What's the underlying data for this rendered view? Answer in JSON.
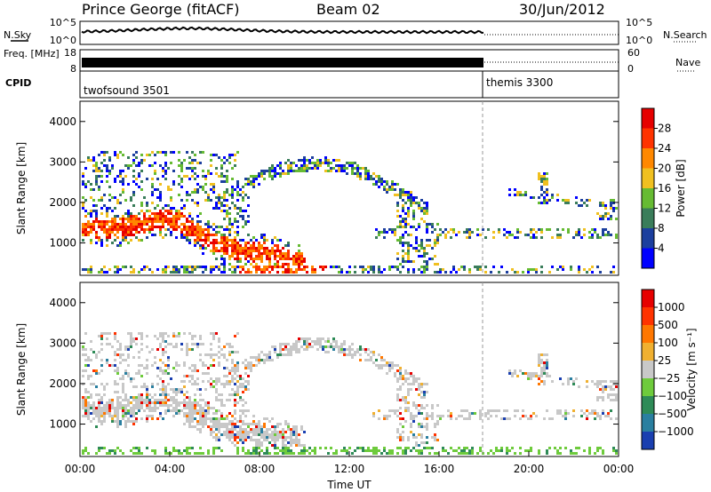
{
  "header": {
    "station": "Prince George (fitACF)",
    "beam": "Beam 02",
    "date": "30/Jun/2012"
  },
  "chart_data": [
    {
      "type": "line",
      "panel": "noise",
      "left_label": "N.Sky",
      "left_ticks": [
        "10^5",
        "10^0"
      ],
      "right_label": "N.Search",
      "right_ticks": [
        "10^5",
        "10^0"
      ]
    },
    {
      "type": "line",
      "panel": "frequency",
      "left_label": "Freq. [MHz]",
      "left_ticks": [
        "18",
        "8"
      ],
      "right_label": "Nave",
      "right_ticks": [
        "60",
        "0"
      ]
    },
    {
      "type": "table",
      "panel": "cpid",
      "label": "CPID",
      "segments": [
        {
          "name": "twofsound 3501",
          "start_hour": 0,
          "end_hour": 18
        },
        {
          "name": "themis 3300",
          "start_hour": 18,
          "end_hour": 24
        }
      ]
    },
    {
      "type": "heatmap",
      "panel": "power",
      "ylabel": "Slant Range [km]",
      "yticks": [
        1000,
        2000,
        3000,
        4000
      ],
      "ylim": [
        200,
        4500
      ],
      "colorbar_label": "Power [dB]",
      "colorbar_ticks": [
        "4",
        "8",
        "12",
        "16",
        "20",
        "24",
        "28"
      ],
      "colors": [
        "#0000ff",
        "#1c3f9e",
        "#3a7d5a",
        "#66bb33",
        "#f0c020",
        "#ff8800",
        "#ff3300",
        "#e60000"
      ]
    },
    {
      "type": "heatmap",
      "panel": "velocity",
      "ylabel": "Slant Range [km]",
      "yticks": [
        1000,
        2000,
        3000,
        4000
      ],
      "ylim": [
        200,
        4500
      ],
      "colorbar_label": "Velocity [m s⁻¹]",
      "colorbar_ticks": [
        "1000",
        "500",
        "100",
        "25",
        "−25",
        "−100",
        "−500",
        "−1000"
      ],
      "colors": [
        "#1a3fb0",
        "#2a7fa0",
        "#2e8b57",
        "#6ecb3c",
        "#c8c8c8",
        "#f0b030",
        "#ff7700",
        "#ff3300",
        "#e60000"
      ]
    }
  ],
  "xaxis": {
    "label": "Time UT",
    "ticks": [
      "00:00",
      "04:00",
      "08:00",
      "12:00",
      "16:00",
      "20:00",
      "00:00"
    ],
    "xlim_hours": [
      0,
      24
    ]
  }
}
